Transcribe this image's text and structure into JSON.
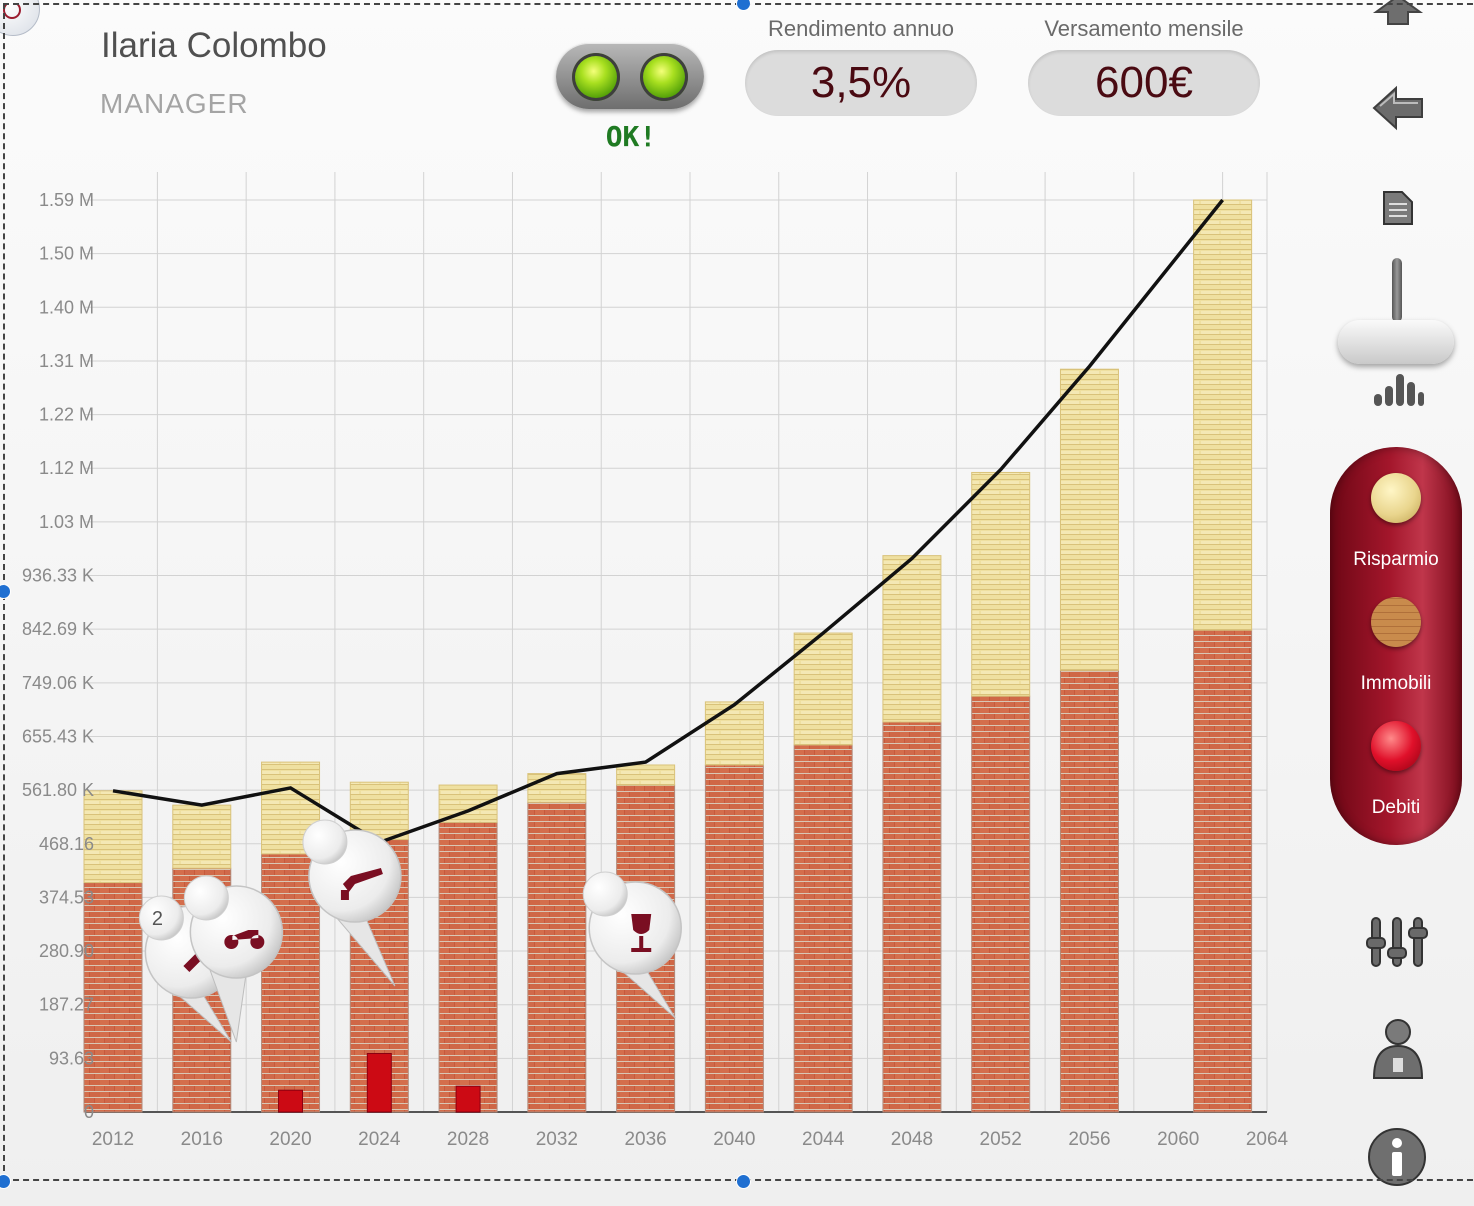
{
  "user": {
    "name": "Ilaria Colombo",
    "role": "MANAGER"
  },
  "status": {
    "label": "OK!",
    "lights": [
      "green",
      "green"
    ]
  },
  "metrics": {
    "annual_return": {
      "title": "Rendimento annuo",
      "value": "3,5%"
    },
    "monthly_deposit": {
      "title": "Versamento mensile",
      "value": "600€"
    }
  },
  "toolbar": {
    "icons": [
      "up-arrow-icon",
      "back-arrow-icon",
      "document-icon",
      "bar-chart-icon",
      "sliders-icon",
      "user-icon",
      "info-icon"
    ]
  },
  "legend": {
    "items": [
      {
        "label": "Risparmio",
        "color": "#ecd98e"
      },
      {
        "label": "Immobili",
        "color": "#c97a4e"
      },
      {
        "label": "Debiti",
        "color": "#e0102a"
      }
    ]
  },
  "markers": [
    {
      "icon": "brush-icon",
      "year": 2014,
      "badge": "2"
    },
    {
      "icon": "scooter-icon",
      "year": 2019
    },
    {
      "icon": "gavel-icon",
      "year": 2022
    },
    {
      "icon": "wine-glass-icon",
      "year": 2034
    }
  ],
  "chart_data": {
    "type": "bar",
    "stacked": true,
    "x_ticks": [
      "2012",
      "2016",
      "2020",
      "2024",
      "2028",
      "2032",
      "2036",
      "2040",
      "2044",
      "2048",
      "2052",
      "2056",
      "2060",
      "2064"
    ],
    "y_ticks": [
      "0",
      "93.63",
      "187.27",
      "280.90",
      "374.53",
      "468.16",
      "561.80 K",
      "655.43 K",
      "749.06 K",
      "842.69 K",
      "936.33 K",
      "1.03 M",
      "1.12 M",
      "1.22 M",
      "1.31 M",
      "1.40 M",
      "1.50 M",
      "1.59 M"
    ],
    "ylim": [
      0,
      1590000
    ],
    "categories": [
      2012,
      2016,
      2020,
      2024,
      2028,
      2032,
      2036,
      2040,
      2044,
      2048,
      2052,
      2056,
      2062
    ],
    "series": [
      {
        "name": "Immobili",
        "color": "#c65a3c",
        "values": [
          400000,
          425000,
          450000,
          475000,
          505000,
          540000,
          570000,
          605000,
          640000,
          680000,
          725000,
          770000,
          840000
        ]
      },
      {
        "name": "Risparmio",
        "color": "#ecd98e",
        "values": [
          160000,
          110000,
          160000,
          100000,
          65000,
          50000,
          35000,
          110000,
          195000,
          290000,
          390000,
          525000,
          750000
        ]
      },
      {
        "name": "Debiti",
        "color": "#cc0a14",
        "x": [
          2020,
          2024,
          2028
        ],
        "values": [
          38000,
          102000,
          45000
        ]
      }
    ],
    "line": {
      "x": [
        2012,
        2016,
        2020,
        2024,
        2028,
        2032,
        2036,
        2040,
        2044,
        2048,
        2052,
        2056,
        2062
      ],
      "values": [
        560000,
        535000,
        565000,
        470000,
        525000,
        590000,
        610000,
        710000,
        835000,
        965000,
        1120000,
        1300000,
        1590000
      ]
    }
  }
}
